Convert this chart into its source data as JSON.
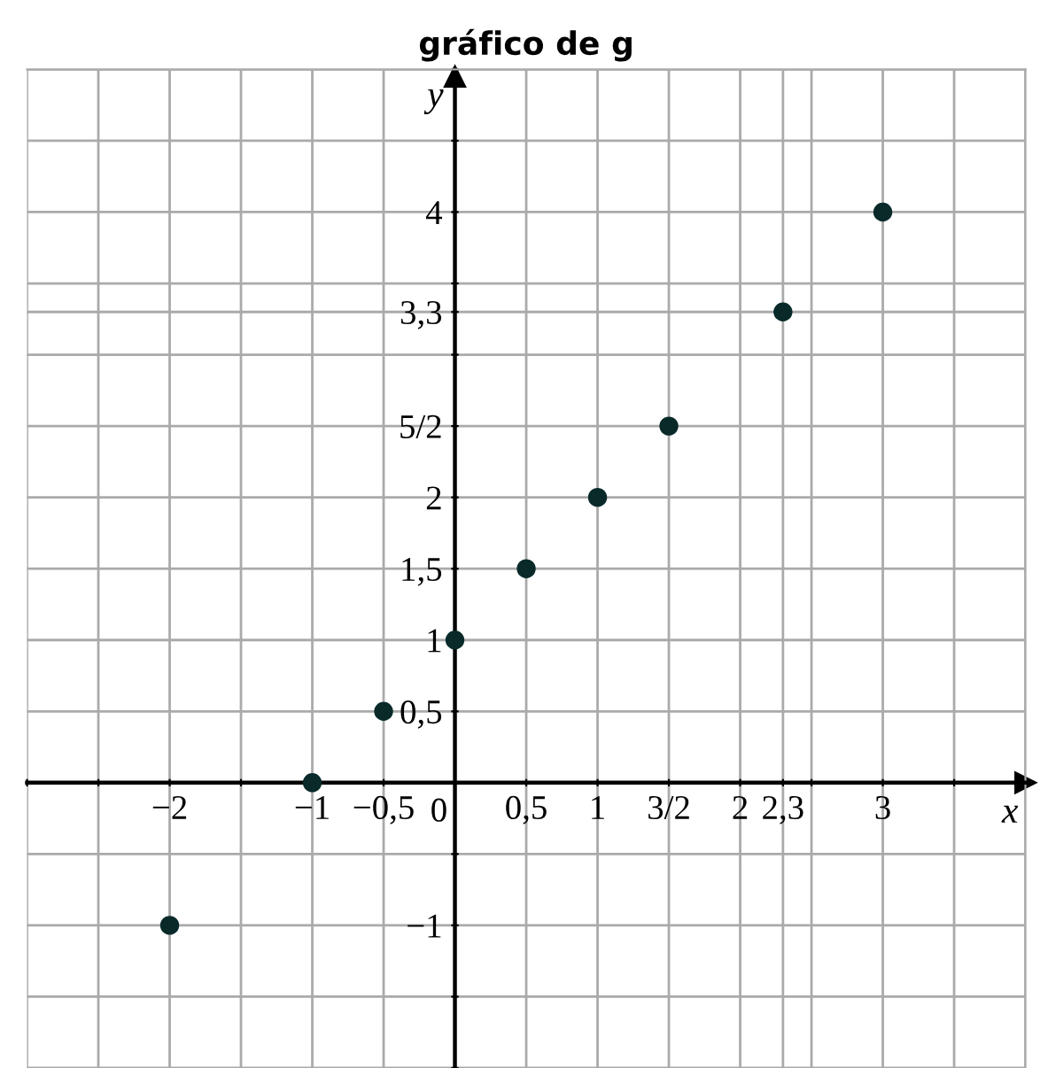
{
  "chart_data": {
    "type": "scatter",
    "title": "gráfico de g",
    "xlabel": "x",
    "ylabel": "y",
    "x": [
      -2,
      -1,
      -0.5,
      0,
      0.5,
      1,
      1.5,
      2.3,
      3
    ],
    "values": [
      -1,
      0,
      0.5,
      1,
      1.5,
      2,
      2.5,
      3.3,
      4
    ],
    "color": "#0a2a2a",
    "marker": "circle",
    "grid": true,
    "xlim": [
      -3,
      4
    ],
    "ylim": [
      -2,
      5
    ],
    "xticks": [
      {
        "value": -3,
        "label": null
      },
      {
        "value": -2.5,
        "label": null
      },
      {
        "value": -2,
        "label": "−2"
      },
      {
        "value": -1.5,
        "label": null
      },
      {
        "value": -1,
        "label": "−1"
      },
      {
        "value": -0.5,
        "label": "−0,5"
      },
      {
        "value": 0,
        "label": "0"
      },
      {
        "value": 0.5,
        "label": "0,5"
      },
      {
        "value": 1,
        "label": "1"
      },
      {
        "value": 1.5,
        "label": "3/2"
      },
      {
        "value": 2,
        "label": "2"
      },
      {
        "value": 2.3,
        "label": "2,3"
      },
      {
        "value": 2.5,
        "label": null
      },
      {
        "value": 3,
        "label": "3"
      },
      {
        "value": 3.5,
        "label": null
      },
      {
        "value": 4,
        "label": null
      }
    ],
    "yticks": [
      {
        "value": -2,
        "label": null
      },
      {
        "value": -1.5,
        "label": null
      },
      {
        "value": -1,
        "label": "−1"
      },
      {
        "value": -0.5,
        "label": null
      },
      {
        "value": 0.5,
        "label": "0,5"
      },
      {
        "value": 1,
        "label": "1"
      },
      {
        "value": 1.5,
        "label": "1,5"
      },
      {
        "value": 2,
        "label": "2"
      },
      {
        "value": 2.5,
        "label": "5/2"
      },
      {
        "value": 3,
        "label": null
      },
      {
        "value": 3.3,
        "label": "3,3"
      },
      {
        "value": 3.5,
        "label": null
      },
      {
        "value": 4,
        "label": "4"
      },
      {
        "value": 4.5,
        "label": null
      },
      {
        "value": 5,
        "label": null
      }
    ]
  }
}
